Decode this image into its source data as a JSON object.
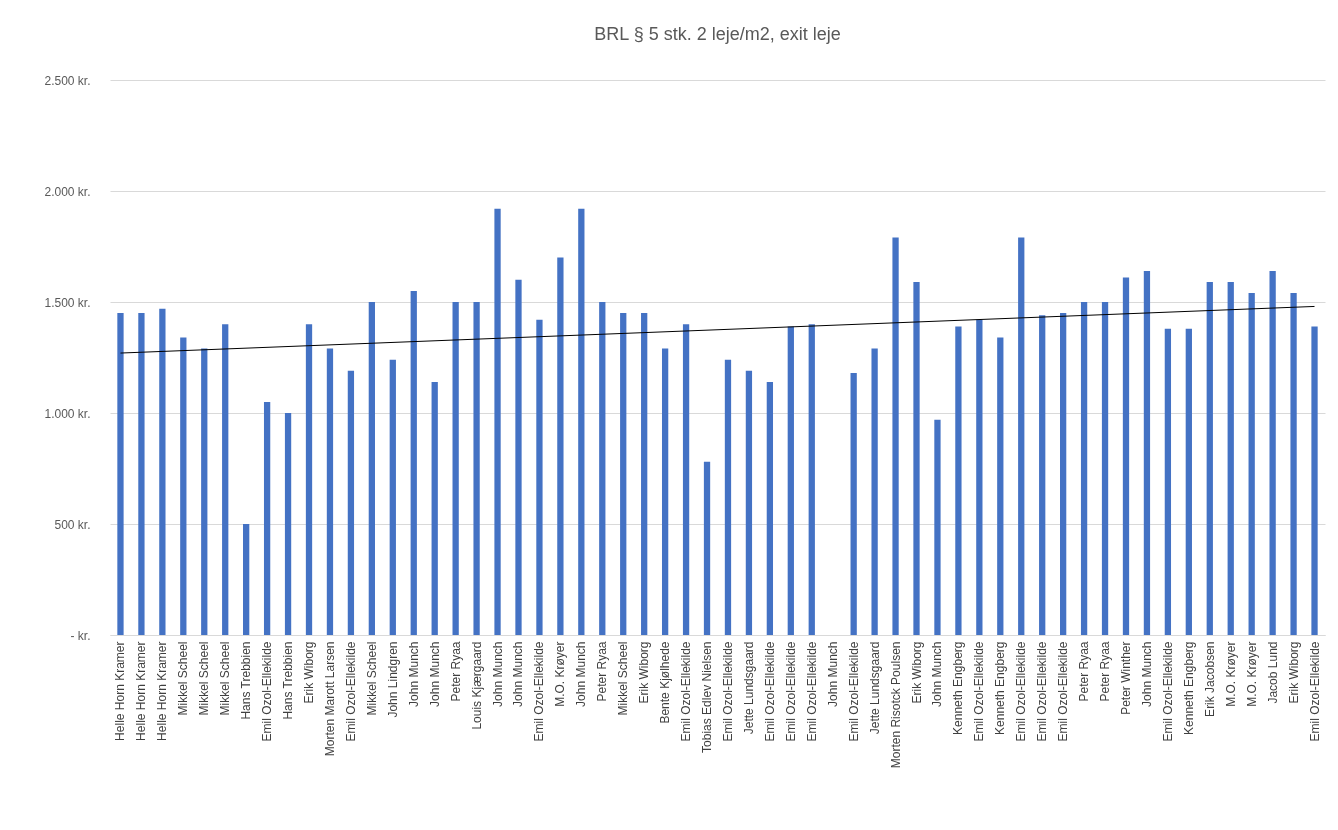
{
  "chart_data": {
    "type": "bar",
    "title": "BRL § 5 stk. 2 leje/m2, exit leje",
    "categories": [
      "Helle Horn Kramer",
      "Helle Horn Kramer",
      "Helle Horn Kramer",
      "Mikkel Scheel",
      "Mikkel Scheel",
      "Mikkel Scheel",
      "Hans Trebbien",
      "Emil Ozol-Ellekilde",
      "Hans Trebbien",
      "Erik Wiborg",
      "Morten Marott Larsen",
      "Emil Ozol-Ellekilde",
      "Mikkel Scheel",
      "John Lindgren",
      "John Munch",
      "John Munch",
      "Peter Ryaa",
      "Louis Kjærgaard",
      "John Munch",
      "John Munch",
      "Emil Ozol-Ellekilde",
      "M.O. Krøyer",
      "John Munch",
      "Peter Ryaa",
      "Mikkel Scheel",
      "Erik Wiborg",
      "Bente Kjølhede",
      "Emil Ozol-Ellekilde",
      "Tobias Edlev Nielsen",
      "Emil Ozol-Ellekilde",
      "Jette Lundsgaard",
      "Emil Ozol-Ellekilde",
      "Emil Ozol-Ellekilde",
      "Emil Ozol-Ellekilde",
      "John Munch",
      "Emil Ozol-Ellekilde",
      "Jette Lundsgaard",
      "Morten Risotck Poulsen",
      "Erik Wiborg",
      "John Munch",
      "Kenneth Engberg",
      "Emil Ozol-Ellekilde",
      "Kenneth Engberg",
      "Emil Ozol-Ellekilde",
      "Emil Ozol-Ellekilde",
      "Emil Ozol-Ellekilde",
      "Peter Ryaa",
      "Peter Ryaa",
      "Peter Winther",
      "John Munch",
      "Emil Ozol-Ellekilde",
      "Kenneth Engberg",
      "Erik Jacobsen",
      "M.O. Krøyer",
      "M.O. Krøyer",
      "Jacob Lund",
      "Erik Wiborg",
      "Emil Ozol-Ellekilde"
    ],
    "series": [
      {
        "color": "#4472c4",
        "values": [
          1450,
          1450,
          1470,
          1340,
          1290,
          1400,
          500,
          1050,
          1000,
          1400,
          1290,
          1190,
          1500,
          1240,
          1550,
          1140,
          1500,
          1500,
          1920,
          1600,
          1420,
          1700,
          1920,
          1500,
          1450,
          1450,
          1290,
          1400,
          780,
          1240,
          1190,
          1140,
          1390,
          1400,
          null,
          1180,
          1290,
          1790,
          1590,
          970,
          1390,
          1420,
          1340,
          1790,
          1440,
          1450,
          1500,
          1500,
          1610,
          1640,
          1380,
          1380,
          1590,
          1590,
          1540,
          1640,
          1540,
          1390
        ]
      },
      {
        "type": "line",
        "color": "#000000",
        "values": [
          1270,
          null,
          null,
          null,
          null,
          null,
          null,
          null,
          null,
          null,
          null,
          null,
          null,
          null,
          null,
          null,
          null,
          null,
          null,
          null,
          null,
          null,
          null,
          null,
          null,
          null,
          null,
          null,
          null,
          null,
          null,
          null,
          null,
          null,
          null,
          null,
          null,
          null,
          null,
          null,
          null,
          null,
          null,
          null,
          null,
          null,
          null,
          null,
          null,
          null,
          null,
          null,
          null,
          null,
          null,
          null,
          null,
          1480
        ]
      }
    ],
    "ylim": [
      0,
      2500
    ],
    "yticks": [
      {
        "value": 0,
        "label": "- kr."
      },
      {
        "value": 500,
        "label": "500 kr."
      },
      {
        "value": 1000,
        "label": "1.000 kr."
      },
      {
        "value": 1500,
        "label": "1.500 kr."
      },
      {
        "value": 2000,
        "label": "2.000 kr."
      },
      {
        "value": 2500,
        "label": "2.500 kr."
      }
    ],
    "grid": "y"
  }
}
